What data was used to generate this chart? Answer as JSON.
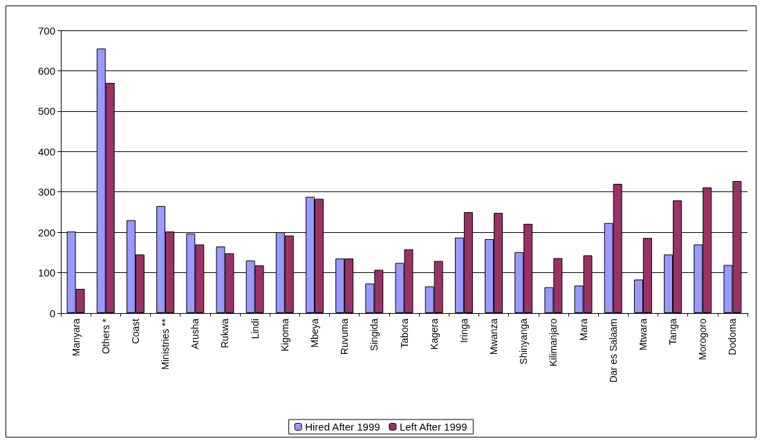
{
  "chart_data": {
    "type": "bar",
    "categories": [
      "Manyara",
      "Others *",
      "Coast",
      "Ministries **",
      "Arusha",
      "Rukwa",
      "Lindi",
      "Kigoma",
      "Mbeya",
      "Ruvuma",
      "Singida",
      "Tabora",
      "Kagera",
      "Iringa",
      "Mwanza",
      "Shinyanga",
      "Kilimanjaro",
      "Mara",
      "Dar es Salaam",
      "Mtwara",
      "Tanga",
      "Morogoro",
      "Dodoma"
    ],
    "series": [
      {
        "name": "Hired After 1999",
        "color": "#9999ff",
        "values": [
          202,
          655,
          230,
          265,
          197,
          165,
          130,
          200,
          288,
          135,
          73,
          124,
          66,
          187,
          183,
          151,
          64,
          68,
          223,
          83,
          145,
          170,
          119
        ]
      },
      {
        "name": "Left After 1999",
        "color": "#993366",
        "values": [
          60,
          570,
          145,
          202,
          170,
          148,
          118,
          192,
          283,
          135,
          107,
          158,
          129,
          250,
          248,
          221,
          136,
          143,
          320,
          186,
          279,
          311,
          327
        ]
      }
    ],
    "ylim": [
      0,
      700
    ],
    "yticks": [
      0,
      100,
      200,
      300,
      400,
      500,
      600,
      700
    ],
    "grid": "y",
    "legend": "bottom"
  }
}
